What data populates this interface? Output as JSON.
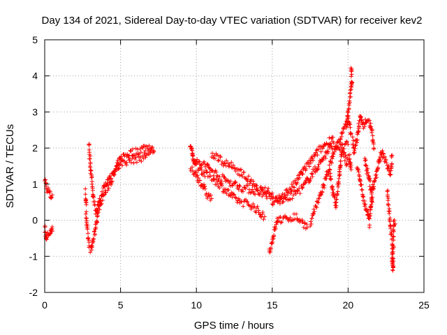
{
  "chart_data": {
    "type": "scatter",
    "title": "Day 134 of 2021, Sidereal Day-to-day VTEC variation (SDTVAR) for receiver kev2",
    "xlabel": "GPS time / hours",
    "ylabel": "SDTVAR / TECUs",
    "xlim": [
      0,
      25
    ],
    "ylim": [
      -2,
      5
    ],
    "xticks": [
      0,
      5,
      10,
      15,
      20,
      25
    ],
    "yticks": [
      -2,
      -1,
      0,
      1,
      2,
      3,
      4,
      5
    ],
    "xtick_labels": [
      "0",
      "5",
      "10",
      "15",
      "20",
      "25"
    ],
    "ytick_labels": [
      "-2",
      "-1",
      "0",
      "1",
      "2",
      "3",
      "4",
      "5"
    ],
    "grid": true,
    "marker": "+",
    "color": "#ff0000",
    "series": [
      {
        "name": "kev2",
        "tracks": [
          [
            [
              0.0,
              1.2
            ],
            [
              0.1,
              0.9
            ],
            [
              0.25,
              0.8
            ],
            [
              0.4,
              0.65
            ],
            [
              0.5,
              0.7
            ]
          ],
          [
            [
              0.0,
              -0.2
            ],
            [
              0.1,
              -0.5
            ],
            [
              0.2,
              -0.35
            ],
            [
              0.35,
              -0.4
            ],
            [
              0.45,
              -0.2
            ],
            [
              0.5,
              -0.3
            ]
          ],
          [
            [
              2.7,
              0.8
            ],
            [
              2.75,
              0.0
            ],
            [
              2.85,
              -0.4
            ],
            [
              2.95,
              -0.75
            ],
            [
              3.05,
              -0.85
            ],
            [
              3.3,
              -0.3
            ],
            [
              3.6,
              0.4
            ],
            [
              3.9,
              0.7
            ],
            [
              4.2,
              0.95
            ],
            [
              4.5,
              1.2
            ],
            [
              4.8,
              1.55
            ],
            [
              5.1,
              1.75
            ],
            [
              5.5,
              1.85
            ],
            [
              6.0,
              1.9
            ],
            [
              6.5,
              2.0
            ],
            [
              7.0,
              2.05
            ],
            [
              7.2,
              1.9
            ]
          ],
          [
            [
              2.9,
              2.1
            ],
            [
              3.0,
              1.6
            ],
            [
              3.1,
              1.1
            ],
            [
              3.2,
              0.7
            ],
            [
              3.4,
              0.2
            ],
            [
              3.6,
              0.5
            ],
            [
              3.9,
              0.9
            ],
            [
              4.3,
              1.2
            ],
            [
              4.7,
              1.4
            ],
            [
              5.1,
              1.6
            ],
            [
              5.5,
              1.65
            ],
            [
              6.0,
              1.7
            ],
            [
              6.5,
              1.75
            ],
            [
              7.0,
              1.9
            ]
          ],
          [
            [
              9.6,
              2.1
            ],
            [
              9.8,
              1.7
            ],
            [
              10.1,
              1.5
            ],
            [
              10.5,
              1.3
            ],
            [
              11.0,
              1.2
            ],
            [
              11.5,
              1.0
            ],
            [
              12.0,
              0.8
            ],
            [
              12.5,
              0.6
            ],
            [
              13.0,
              0.5
            ],
            [
              13.5,
              0.45
            ],
            [
              14.0,
              0.3
            ],
            [
              14.3,
              0.15
            ],
            [
              14.5,
              0.1
            ]
          ],
          [
            [
              9.7,
              1.8
            ],
            [
              10.0,
              1.6
            ],
            [
              10.5,
              1.55
            ],
            [
              11.0,
              1.4
            ],
            [
              11.5,
              1.2
            ],
            [
              12.0,
              1.1
            ],
            [
              12.5,
              1.0
            ],
            [
              13.0,
              0.9
            ],
            [
              13.5,
              0.85
            ],
            [
              14.0,
              0.8
            ],
            [
              14.5,
              0.75
            ],
            [
              15.0,
              0.6
            ],
            [
              15.5,
              0.55
            ],
            [
              16.0,
              0.6
            ],
            [
              16.5,
              0.75
            ],
            [
              17.0,
              0.9
            ],
            [
              17.5,
              1.2
            ],
            [
              18.0,
              1.5
            ],
            [
              18.5,
              1.8
            ],
            [
              19.0,
              2.1
            ],
            [
              19.5,
              2.0
            ],
            [
              20.0,
              2.1
            ]
          ],
          [
            [
              9.6,
              1.4
            ],
            [
              9.9,
              1.3
            ],
            [
              10.2,
              1.1
            ],
            [
              10.5,
              0.9
            ],
            [
              10.7,
              0.7
            ],
            [
              11.0,
              0.6
            ]
          ],
          [
            [
              11.0,
              1.8
            ],
            [
              11.5,
              1.7
            ],
            [
              12.0,
              1.55
            ],
            [
              12.5,
              1.45
            ],
            [
              13.0,
              1.3
            ],
            [
              13.5,
              1.1
            ],
            [
              14.0,
              0.85
            ],
            [
              14.5,
              0.8
            ],
            [
              15.0,
              0.75
            ]
          ],
          [
            [
              14.8,
              -0.9
            ],
            [
              15.0,
              -0.6
            ],
            [
              15.2,
              -0.2
            ],
            [
              15.4,
              0.05
            ],
            [
              15.7,
              0.0
            ],
            [
              16.0,
              0.05
            ],
            [
              16.5,
              0.1
            ],
            [
              17.0,
              -0.05
            ],
            [
              17.3,
              -0.2
            ]
          ],
          [
            [
              15.0,
              0.4
            ],
            [
              15.5,
              0.6
            ],
            [
              16.0,
              0.8
            ],
            [
              16.5,
              1.0
            ],
            [
              17.0,
              1.35
            ],
            [
              17.5,
              1.6
            ],
            [
              18.0,
              1.9
            ],
            [
              18.5,
              2.1
            ],
            [
              19.0,
              2.3
            ]
          ],
          [
            [
              17.5,
              -0.1
            ],
            [
              18.0,
              0.5
            ],
            [
              18.5,
              1.1
            ],
            [
              19.0,
              1.8
            ],
            [
              19.5,
              2.3
            ],
            [
              19.8,
              2.6
            ],
            [
              20.0,
              2.8
            ],
            [
              20.2,
              2.4
            ]
          ],
          [
            [
              18.8,
              1.3
            ],
            [
              19.0,
              0.8
            ],
            [
              19.2,
              0.4
            ],
            [
              19.4,
              1.2
            ],
            [
              19.6,
              2.0
            ],
            [
              19.9,
              1.6
            ],
            [
              20.1,
              1.8
            ],
            [
              20.2,
              1.4
            ]
          ],
          [
            [
              20.2,
              4.3
            ],
            [
              20.25,
              3.8
            ],
            [
              20.15,
              3.5
            ],
            [
              20.0,
              3.0
            ],
            [
              19.9,
              2.6
            ]
          ],
          [
            [
              20.3,
              2.2
            ],
            [
              20.4,
              1.9
            ],
            [
              20.6,
              2.3
            ],
            [
              20.8,
              2.9
            ],
            [
              21.0,
              2.6
            ],
            [
              21.2,
              2.8
            ],
            [
              21.4,
              2.7
            ],
            [
              21.6,
              2.4
            ],
            [
              21.7,
              2.0
            ]
          ],
          [
            [
              20.6,
              1.5
            ],
            [
              20.8,
              1.1
            ],
            [
              21.0,
              0.6
            ],
            [
              21.2,
              0.3
            ],
            [
              21.4,
              -0.1
            ],
            [
              21.5,
              0.4
            ],
            [
              21.6,
              0.8
            ],
            [
              21.8,
              1.2
            ],
            [
              22.0,
              1.5
            ],
            [
              22.2,
              1.9
            ],
            [
              22.4,
              1.7
            ],
            [
              22.6,
              1.5
            ],
            [
              22.8,
              1.3
            ],
            [
              22.9,
              1.8
            ]
          ],
          [
            [
              21.1,
              1.7
            ],
            [
              21.3,
              1.3
            ],
            [
              21.5,
              0.9
            ],
            [
              21.6,
              0.5
            ]
          ],
          [
            [
              22.6,
              0.8
            ],
            [
              22.7,
              0.3
            ],
            [
              22.8,
              -0.2
            ],
            [
              22.9,
              -0.6
            ],
            [
              22.9,
              -1.0
            ],
            [
              22.95,
              -1.4
            ],
            [
              23.0,
              -0.1
            ],
            [
              23.1,
              -0.1
            ]
          ]
        ]
      }
    ]
  }
}
